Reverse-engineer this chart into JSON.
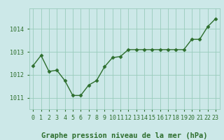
{
  "x": [
    0,
    1,
    2,
    3,
    4,
    5,
    6,
    7,
    8,
    9,
    10,
    11,
    12,
    13,
    14,
    15,
    16,
    17,
    18,
    19,
    20,
    21,
    22,
    23
  ],
  "y": [
    1012.4,
    1012.85,
    1012.15,
    1012.2,
    1011.75,
    1011.1,
    1011.1,
    1011.55,
    1011.75,
    1012.35,
    1012.75,
    1012.8,
    1013.1,
    1013.1,
    1013.1,
    1013.1,
    1013.1,
    1013.1,
    1013.1,
    1013.1,
    1013.55,
    1013.55,
    1014.1,
    1014.45
  ],
  "line_color": "#2d6e2d",
  "marker": "D",
  "marker_size": 2.5,
  "bg_color": "#cce8e8",
  "grid_color": "#99ccbb",
  "title": "Graphe pression niveau de la mer (hPa)",
  "title_color": "#2d6e2d",
  "title_fontsize": 7.5,
  "ylim": [
    1010.5,
    1014.9
  ],
  "yticks": [
    1011,
    1012,
    1013,
    1014
  ],
  "xticks": [
    0,
    1,
    2,
    3,
    4,
    5,
    6,
    7,
    8,
    9,
    10,
    11,
    12,
    13,
    14,
    15,
    16,
    17,
    18,
    19,
    20,
    21,
    22,
    23
  ],
  "tick_color": "#2d6e2d",
  "tick_fontsize": 6,
  "linewidth": 1.0
}
